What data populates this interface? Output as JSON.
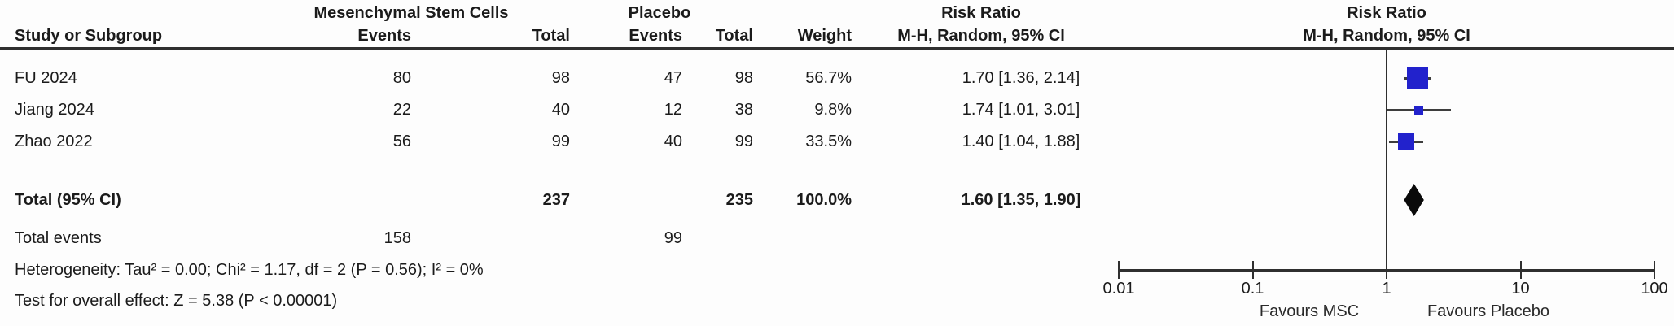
{
  "header": {
    "group1": "Mesenchymal Stem Cells",
    "group2": "Placebo",
    "risk_ratio": "Risk Ratio",
    "method": "M-H, Random, 95% CI",
    "study_col": "Study or Subgroup",
    "events_col": "Events",
    "total_col": "Total",
    "weight_col": "Weight"
  },
  "studies": [
    {
      "name": "FU 2024",
      "g1_events": "80",
      "g1_total": "98",
      "g2_events": "47",
      "g2_total": "98",
      "weight": "56.7%",
      "ci": "1.70 [1.36, 2.14]"
    },
    {
      "name": "Jiang 2024",
      "g1_events": "22",
      "g1_total": "40",
      "g2_events": "12",
      "g2_total": "38",
      "weight": "9.8%",
      "ci": "1.74 [1.01, 3.01]"
    },
    {
      "name": "Zhao 2022",
      "g1_events": "56",
      "g1_total": "99",
      "g2_events": "40",
      "g2_total": "99",
      "weight": "33.5%",
      "ci": "1.40 [1.04, 1.88]"
    }
  ],
  "total": {
    "label": "Total (95% CI)",
    "g1_total": "237",
    "g2_total": "235",
    "weight": "100.0%",
    "ci": "1.60 [1.35, 1.90]"
  },
  "total_events": {
    "label": "Total events",
    "g1": "158",
    "g2": "99"
  },
  "footnotes": {
    "heterogeneity": "Heterogeneity: Tau² = 0.00; Chi² = 1.17, df = 2 (P = 0.56); I² = 0%",
    "overall": "Test for overall effect: Z = 5.38 (P < 0.00001)"
  },
  "plot": {
    "tick_labels": [
      "0.01",
      "0.1",
      "1",
      "10",
      "100"
    ],
    "favours_left": "Favours MSC",
    "favours_right": "Favours Placebo",
    "square_color": "#2222CC",
    "diamond_color": "#0a0a0a",
    "line_color": "#3d3d3d"
  },
  "chart_data": {
    "type": "forest",
    "effect_measure": "Risk Ratio",
    "method": "M-H, Random, 95% CI",
    "x_scale": "log10",
    "xlim": [
      0.01,
      100
    ],
    "x_ticks": [
      0.01,
      0.1,
      1,
      10,
      100
    ],
    "null_line": 1,
    "studies": [
      {
        "label": "FU 2024",
        "rr": 1.7,
        "ci_low": 1.36,
        "ci_high": 2.14,
        "weight_pct": 56.7
      },
      {
        "label": "Jiang 2024",
        "rr": 1.74,
        "ci_low": 1.01,
        "ci_high": 3.01,
        "weight_pct": 9.8
      },
      {
        "label": "Zhao 2022",
        "rr": 1.4,
        "ci_low": 1.04,
        "ci_high": 1.88,
        "weight_pct": 33.5
      }
    ],
    "pooled": {
      "label": "Total (95% CI)",
      "rr": 1.6,
      "ci_low": 1.35,
      "ci_high": 1.9,
      "weight_pct": 100.0
    },
    "totals": {
      "group1_total": 237,
      "group2_total": 235,
      "group1_events": 158,
      "group2_events": 99
    },
    "heterogeneity": {
      "tau2": 0.0,
      "chi2": 1.17,
      "df": 2,
      "p": 0.56,
      "i2_pct": 0
    },
    "overall_effect": {
      "z": 5.38,
      "p": "< 0.00001"
    },
    "favours": [
      "Favours MSC",
      "Favours Placebo"
    ],
    "legend_position": "none",
    "grid": false
  }
}
